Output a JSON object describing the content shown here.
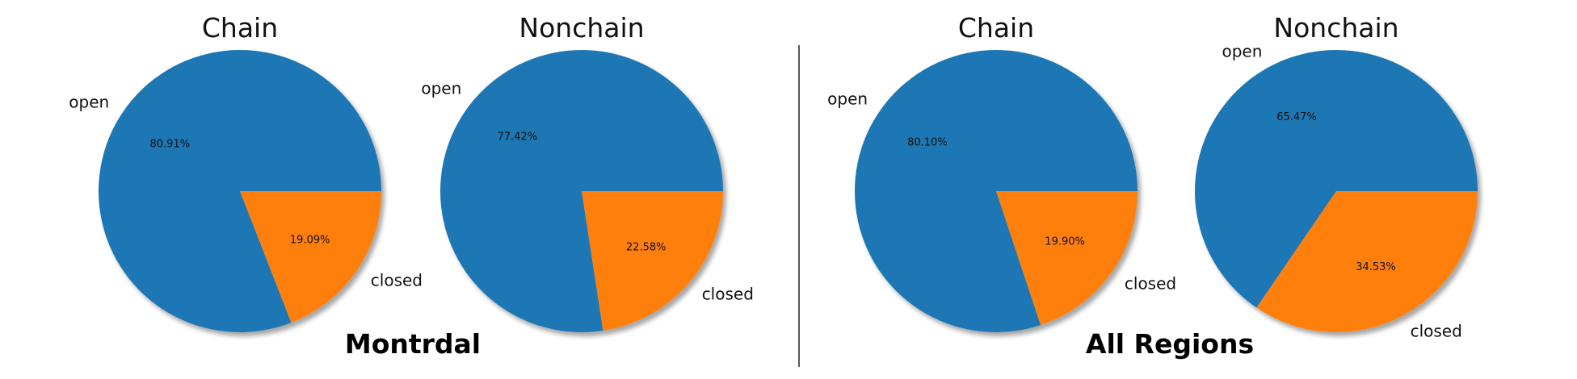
{
  "colors": {
    "open": "#1f77b4",
    "closed": "#ff7f0e"
  },
  "captions": [
    "Montrdal",
    "All Regions"
  ],
  "chart_data": [
    {
      "type": "pie",
      "title": "Chain",
      "group": "Montrdal",
      "categories": [
        "open",
        "closed"
      ],
      "values": [
        80.91,
        19.09
      ],
      "labels": [
        "80.91%",
        "19.09%"
      ]
    },
    {
      "type": "pie",
      "title": "Nonchain",
      "group": "Montrdal",
      "categories": [
        "open",
        "closed"
      ],
      "values": [
        77.42,
        22.58
      ],
      "labels": [
        "77.42%",
        "22.58%"
      ]
    },
    {
      "type": "pie",
      "title": "Chain",
      "group": "All Regions",
      "categories": [
        "open",
        "closed"
      ],
      "values": [
        80.1,
        19.9
      ],
      "labels": [
        "80.10%",
        "19.90%"
      ]
    },
    {
      "type": "pie",
      "title": "Nonchain",
      "group": "All Regions",
      "categories": [
        "open",
        "closed"
      ],
      "values": [
        65.47,
        34.53
      ],
      "labels": [
        "65.47%",
        "34.53%"
      ]
    }
  ]
}
